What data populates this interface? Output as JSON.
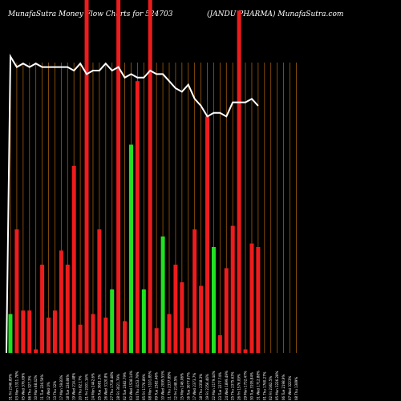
{
  "header": {
    "title_left": "MunafaSutra  Money Flow  Charts for 524703",
    "title_right": "(JANDU PHARMA) MunafaSutra.com"
  },
  "colors": {
    "background": "#000000",
    "gridline": "#a05a0a",
    "up_bar": "#22e022",
    "down_bar": "#ee1c1c",
    "line": "#ffffff"
  },
  "chart_data": {
    "type": "bar",
    "title": "",
    "xlabel": "",
    "ylabel": "",
    "ylim": [
      0,
      100
    ],
    "grid": true,
    "categories": [
      "31 Fri Mar 2023",
      "03 Mon Apr 2023",
      "05 Wed Apr 2023",
      "06 Thu Apr 2023",
      "10 Mon Apr 2023",
      "11 Tue Apr 2023",
      "12 Wed Apr 2023",
      "13 Thu Apr 2023",
      "17 Mon Apr 2023",
      "18 Tue Apr 2023",
      "19 Wed Apr 2023",
      "20 Thu Apr 2023",
      "21 Fri Apr 2023",
      "24 Mon Apr 2023",
      "25 Tue Apr 2023",
      "26 Wed Apr 2023",
      "27 Thu Apr 2023",
      "28 Fri Apr 2023",
      "02 Tue May 2023",
      "03 Wed May 2023",
      "04 Thu May 2023",
      "05 Fri May 2023",
      "08 Mon May 2023",
      "09 Tue May 2023",
      "10 Wed May 2023",
      "11 Thu May 2023",
      "12 Fri May 2023",
      "15 Mon May 2023",
      "16 Tue May 2023",
      "17 Wed May 2023",
      "18 Thu May 2023",
      "19 Fri May 2023",
      "22 Mon May 2023",
      "23 Tue May 2023",
      "24 Wed May 2023",
      "25 Thu May 2023",
      "26 Fri May 2023",
      "29 Mon May 2023",
      "30 Tue May 2023",
      "31 Wed May 2023",
      "01 Thu Jun 2023",
      "02 Fri Jun 2023",
      "05 Mon Jun 2023",
      "06 Tue Jun 2023",
      "07 Wed Jun 2023",
      "08 Thu Jun 2023"
    ],
    "series": [
      {
        "kind": "bar",
        "direction": [
          "up",
          "down",
          "down",
          "down",
          "down",
          "down",
          "down",
          "down",
          "down",
          "down",
          "down",
          "down",
          "down",
          "down",
          "down",
          "down",
          "up",
          "down",
          "down",
          "up",
          "down",
          "up",
          "down",
          "down",
          "up",
          "down",
          "down",
          "down",
          "down",
          "down",
          "down",
          "down",
          "up",
          "down",
          "down",
          "down",
          "down",
          "down",
          "down",
          "down",
          "down",
          "down",
          "up",
          "down",
          "up",
          "down"
        ],
        "values": [
          11,
          35,
          12,
          12,
          1,
          25,
          10,
          12,
          29,
          25,
          53,
          8,
          100,
          11,
          35,
          10,
          18,
          100,
          9,
          59,
          77,
          18,
          100,
          7,
          33,
          11,
          25,
          20,
          7,
          35,
          19,
          67,
          30,
          5,
          24,
          36,
          97,
          1,
          31,
          30,
          0,
          0,
          0,
          0,
          0,
          0
        ]
      },
      {
        "kind": "line",
        "values": [
          84,
          81,
          82,
          81,
          82,
          81,
          81,
          81,
          81,
          81,
          80,
          82,
          79,
          80,
          80,
          82,
          80,
          81,
          78,
          79,
          78,
          78,
          80,
          79,
          79,
          77,
          75,
          74,
          76,
          72,
          70,
          67,
          68,
          68,
          67,
          71,
          71,
          71,
          72,
          70,
          0,
          0,
          0,
          0,
          0,
          0
        ]
      }
    ],
    "x_tick_labels": [
      "31 Fri 2346.89%",
      "03 Mon 3311.78% ",
      "05 Wed 376.69%",
      "06 Thu 327.3%",
      "10 Mon 88.42%",
      "11 Tue 226.59%",
      "12 Wed 0%",
      "13 Thu 32%",
      "17 Mon 59.83%",
      "18 Tue 228.86%",
      "19 Wed 214.48%",
      "20 Thu 82.17%",
      "21 Fri 2301.16%",
      "24 Mon 2442.6%",
      "25 Tue 3081.3%",
      "26 Wed 3120.8%",
      "27 Thu 1718.48%",
      "28 Fri 3021.79%",
      "02 Tue 2382.79%",
      "03 Wed 1538.14%",
      "04 Thu 3153.79%",
      "05 Fri 1776.89%",
      "08 Mon 3101.85%",
      "09 Tue 2382.46%",
      "10 Wed 2095.55%",
      "11 Thu 2337.89%",
      "12 Fri 2148.5%",
      "15 Mon 246.06%",
      "16 Tue 3077.87%",
      "17 Wed 2373.7%",
      "18 Thu 2358.3%",
      "19 Fri 2356.46%",
      "22 Mon 2179.44%",
      "23 Tue 2277.74%",
      "24 Wed 1899.49%",
      "25 Thu 2375.63%",
      "26 Fri 1576.09%",
      "29 Mon 1732.47%",
      "30 Tue 3195.84%",
      "31 Wed 1712.88%",
      "01 Thu 1760.27%",
      "02 Fri 2362.5%",
      "05 Mon 3226.28%",
      "06 Tue 2198.9%",
      "07 Wed 3223%",
      "08 Thu 1389%"
    ]
  }
}
